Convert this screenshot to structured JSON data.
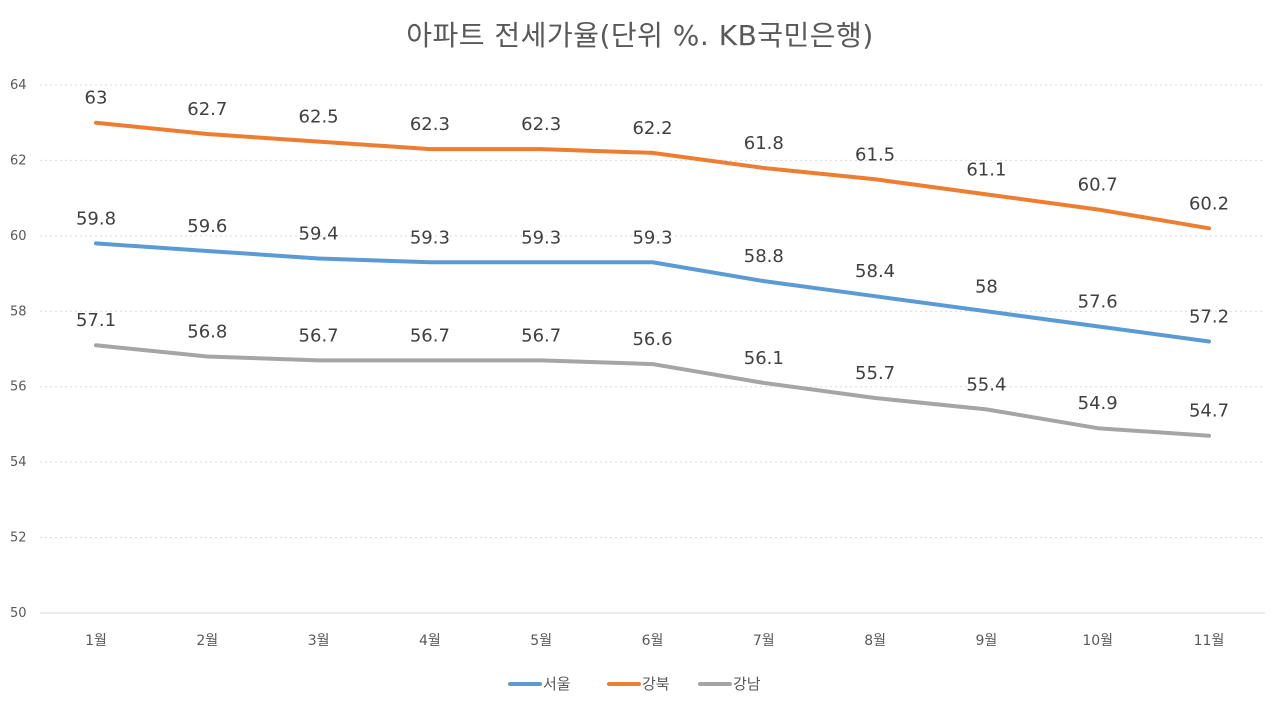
{
  "chart_data": {
    "type": "line",
    "title": "아파트 전세가율(단위 %. KB국민은행)",
    "xlabel": "",
    "ylabel": "",
    "ylim": [
      50,
      64
    ],
    "yticks": [
      50,
      52,
      54,
      56,
      58,
      60,
      62,
      64
    ],
    "grid": true,
    "legend_position": "bottom",
    "categories": [
      "1월",
      "2월",
      "3월",
      "4월",
      "5월",
      "6월",
      "7월",
      "8월",
      "9월",
      "10월",
      "11월"
    ],
    "series": [
      {
        "name": "서울",
        "color": "#5B9BD5",
        "values": [
          59.8,
          59.6,
          59.4,
          59.3,
          59.3,
          59.3,
          58.8,
          58.4,
          58,
          57.6,
          57.2
        ]
      },
      {
        "name": "강북",
        "color": "#ED7D31",
        "values": [
          63,
          62.7,
          62.5,
          62.3,
          62.3,
          62.2,
          61.8,
          61.5,
          61.1,
          60.7,
          60.2
        ]
      },
      {
        "name": "강남",
        "color": "#A5A5A5",
        "values": [
          57.1,
          56.8,
          56.7,
          56.7,
          56.7,
          56.6,
          56.1,
          55.7,
          55.4,
          54.9,
          54.7
        ]
      }
    ]
  }
}
